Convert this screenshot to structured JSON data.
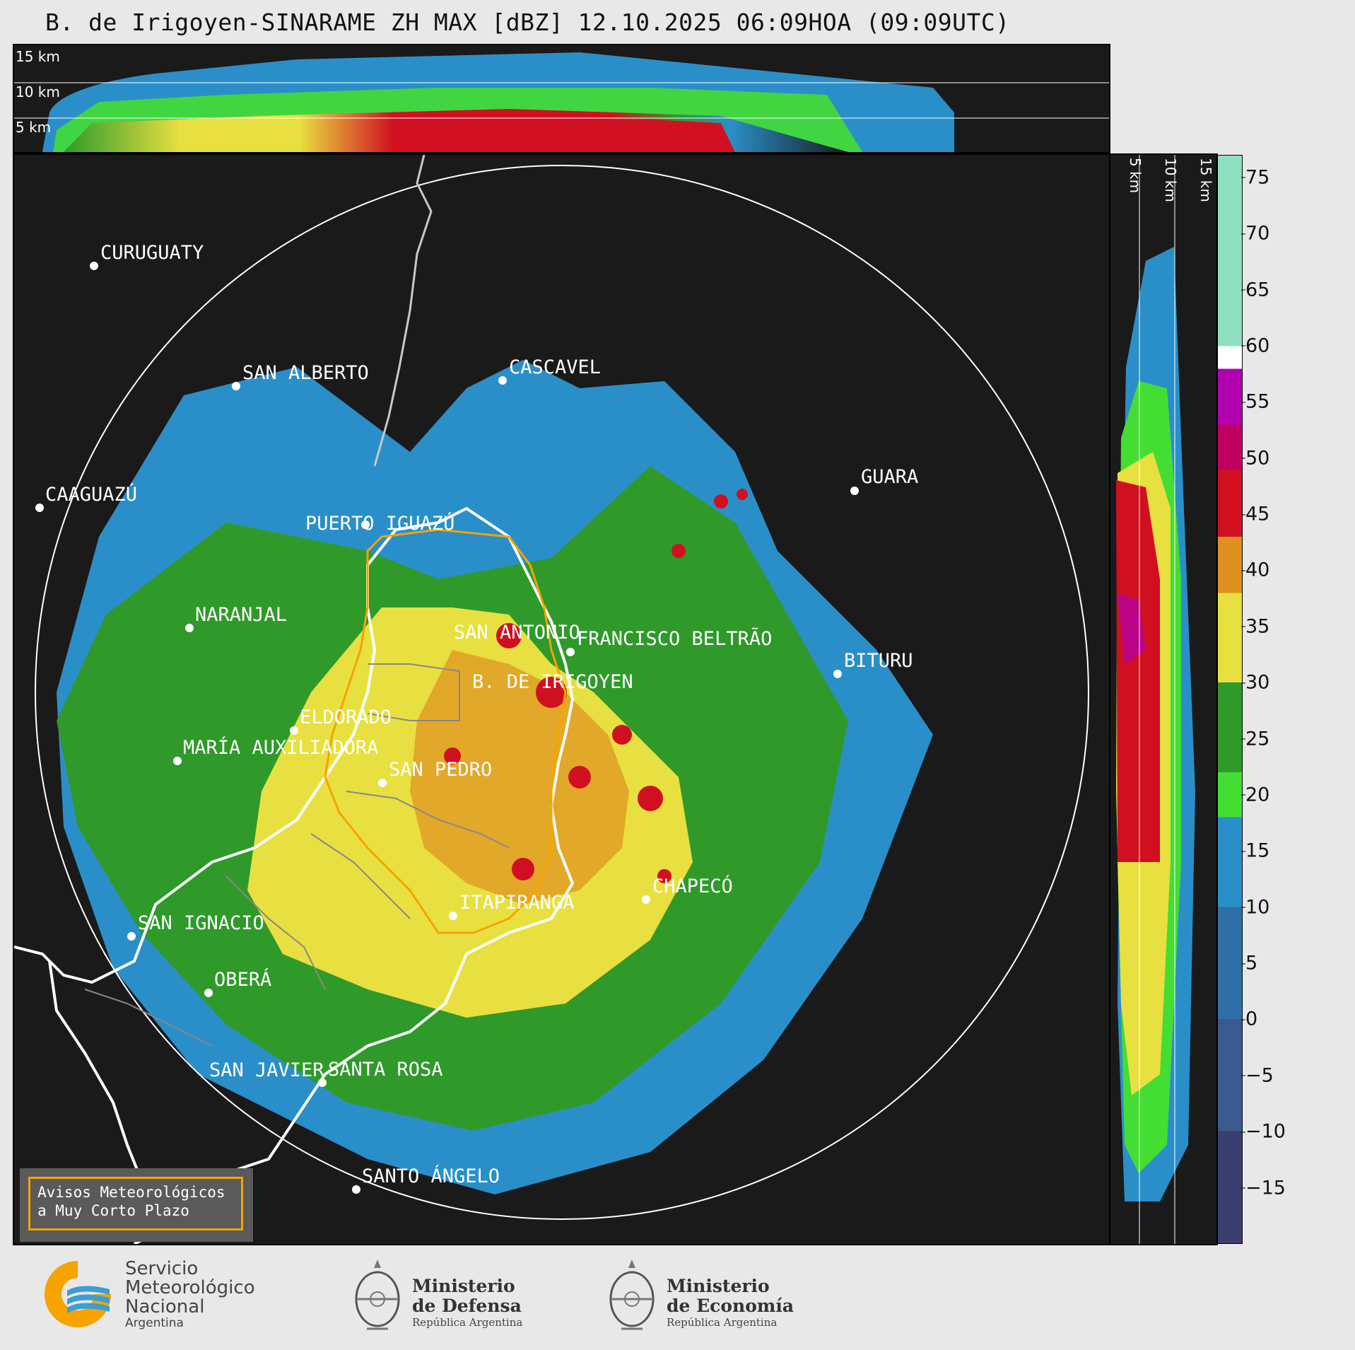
{
  "title": "B. de Irigoyen-SINARAME ZH MAX [dBZ] 12.10.2025 06:09HOA (09:09UTC)",
  "top_panel": {
    "height_labels": [
      "15 km",
      "10 km",
      "5 km"
    ]
  },
  "side_panel": {
    "height_labels": [
      "5 km",
      "10 km",
      "15 km"
    ]
  },
  "colorbar": {
    "ticks": [
      "75",
      "70",
      "65",
      "60",
      "55",
      "50",
      "45",
      "40",
      "35",
      "30",
      "25",
      "20",
      "15",
      "10",
      "5",
      "0",
      "−5",
      "−10",
      "−15"
    ],
    "range": [
      -20,
      77
    ],
    "stops": [
      {
        "from": -20,
        "to": -10,
        "color": "#3a3f6e"
      },
      {
        "from": -10,
        "to": 0,
        "color": "#3a5a8e"
      },
      {
        "from": 0,
        "to": 10,
        "color": "#2f6fa8"
      },
      {
        "from": 10,
        "to": 18,
        "color": "#2a8fc8"
      },
      {
        "from": 18,
        "to": 22,
        "color": "#44dd33"
      },
      {
        "from": 22,
        "to": 30,
        "color": "#2f9a2a"
      },
      {
        "from": 30,
        "to": 38,
        "color": "#e8e040"
      },
      {
        "from": 38,
        "to": 43,
        "color": "#e09020"
      },
      {
        "from": 43,
        "to": 49,
        "color": "#d01020"
      },
      {
        "from": 49,
        "to": 53,
        "color": "#c00060"
      },
      {
        "from": 53,
        "to": 58,
        "color": "#b000b0"
      },
      {
        "from": 58,
        "to": 60,
        "color": "#ffffff"
      },
      {
        "from": 60,
        "to": 77,
        "color": "#8ee0c0"
      }
    ]
  },
  "cities": [
    {
      "name": "CURUGUATY"
    },
    {
      "name": "SAN ALBERTO"
    },
    {
      "name": "CASCAVEL"
    },
    {
      "name": "CAAGUAZÚ"
    },
    {
      "name": "GUARA"
    },
    {
      "name": "PUERTO IGUAZÚ"
    },
    {
      "name": "NARANJAL"
    },
    {
      "name": "SAN ANTONIO"
    },
    {
      "name": "FRANCISCO BELTRÃO"
    },
    {
      "name": "BITURU"
    },
    {
      "name": "B. DE IRIGOYEN"
    },
    {
      "name": "ELDORADO"
    },
    {
      "name": "MARÍA AUXILIADORA"
    },
    {
      "name": "SAN PEDRO"
    },
    {
      "name": "CHAPECÓ"
    },
    {
      "name": "ITAPIRANGA"
    },
    {
      "name": "SAN IGNACIO"
    },
    {
      "name": "OBERÁ"
    },
    {
      "name": "SAN JAVIER"
    },
    {
      "name": "SANTA ROSA"
    },
    {
      "name": "SANTO ÁNGELO"
    }
  ],
  "legend": {
    "line1": "Avisos Meteorológicos",
    "line2": "a Muy Corto Plazo"
  },
  "logos": {
    "smn": {
      "line1": "Servicio",
      "line2": "Meteorológico",
      "line3": "Nacional",
      "line4": "Argentina"
    },
    "defensa": {
      "line1": "Ministerio",
      "line2": "de Defensa",
      "sub": "República Argentina"
    },
    "economia": {
      "line1": "Ministerio",
      "line2": "de Economía",
      "sub": "República Argentina"
    }
  },
  "colors": {
    "background": "#1a1a1a",
    "range_ring": "#ffffff",
    "province_outline": "#ffffff",
    "highlight_outline": "#f5a400"
  }
}
